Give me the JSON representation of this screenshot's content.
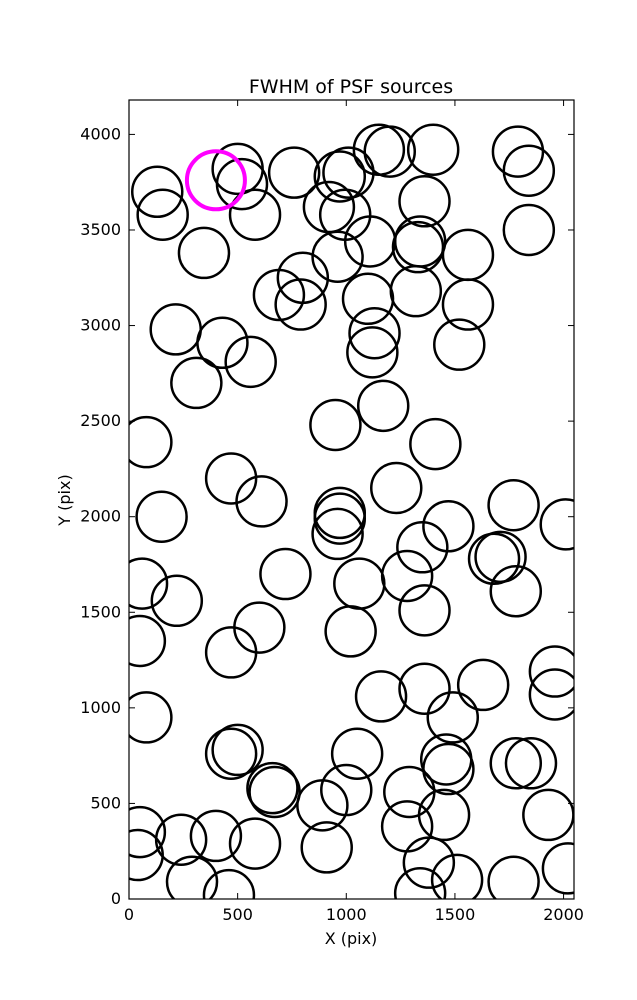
{
  "chart_data": {
    "type": "scatter",
    "title": "FWHM of PSF sources",
    "xlabel": "X (pix)",
    "ylabel": "Y (pix)",
    "xlim": [
      0,
      2048
    ],
    "ylim": [
      0,
      4180
    ],
    "xticks": [
      0,
      500,
      1000,
      1500,
      2000
    ],
    "yticks": [
      0,
      500,
      1000,
      1500,
      2000,
      2500,
      3000,
      3500,
      4000
    ],
    "marker": "open-circle",
    "colors": {
      "sources": "#000000",
      "highlight": "#ff00ff"
    },
    "sources": [
      {
        "x": 130,
        "y": 3700
      },
      {
        "x": 155,
        "y": 3580
      },
      {
        "x": 345,
        "y": 3380
      },
      {
        "x": 500,
        "y": 3820
      },
      {
        "x": 520,
        "y": 3740
      },
      {
        "x": 580,
        "y": 3580
      },
      {
        "x": 760,
        "y": 3800
      },
      {
        "x": 920,
        "y": 3620
      },
      {
        "x": 970,
        "y": 3780
      },
      {
        "x": 1010,
        "y": 3800
      },
      {
        "x": 995,
        "y": 3580
      },
      {
        "x": 1150,
        "y": 3920
      },
      {
        "x": 1200,
        "y": 3910
      },
      {
        "x": 1400,
        "y": 3920
      },
      {
        "x": 1360,
        "y": 3650
      },
      {
        "x": 1790,
        "y": 3910
      },
      {
        "x": 1840,
        "y": 3810
      },
      {
        "x": 1840,
        "y": 3500
      },
      {
        "x": 1110,
        "y": 3440
      },
      {
        "x": 1340,
        "y": 3440
      },
      {
        "x": 1330,
        "y": 3410
      },
      {
        "x": 1560,
        "y": 3370
      },
      {
        "x": 960,
        "y": 3360
      },
      {
        "x": 800,
        "y": 3250
      },
      {
        "x": 690,
        "y": 3160
      },
      {
        "x": 790,
        "y": 3110
      },
      {
        "x": 1100,
        "y": 3140
      },
      {
        "x": 1320,
        "y": 3180
      },
      {
        "x": 1560,
        "y": 3110
      },
      {
        "x": 215,
        "y": 2980
      },
      {
        "x": 430,
        "y": 2910
      },
      {
        "x": 560,
        "y": 2810
      },
      {
        "x": 310,
        "y": 2700
      },
      {
        "x": 1130,
        "y": 2960
      },
      {
        "x": 1120,
        "y": 2860
      },
      {
        "x": 1520,
        "y": 2900
      },
      {
        "x": 950,
        "y": 2480
      },
      {
        "x": 1170,
        "y": 2580
      },
      {
        "x": 80,
        "y": 2390
      },
      {
        "x": 1410,
        "y": 2380
      },
      {
        "x": 470,
        "y": 2200
      },
      {
        "x": 610,
        "y": 2080
      },
      {
        "x": 1230,
        "y": 2150
      },
      {
        "x": 150,
        "y": 2000
      },
      {
        "x": 970,
        "y": 2020
      },
      {
        "x": 970,
        "y": 1990
      },
      {
        "x": 960,
        "y": 1910
      },
      {
        "x": 1470,
        "y": 1950
      },
      {
        "x": 1770,
        "y": 2060
      },
      {
        "x": 2010,
        "y": 1960
      },
      {
        "x": 1350,
        "y": 1840
      },
      {
        "x": 1680,
        "y": 1780
      },
      {
        "x": 1710,
        "y": 1790
      },
      {
        "x": 60,
        "y": 1650
      },
      {
        "x": 220,
        "y": 1560
      },
      {
        "x": 720,
        "y": 1700
      },
      {
        "x": 1060,
        "y": 1650
      },
      {
        "x": 1280,
        "y": 1690
      },
      {
        "x": 1360,
        "y": 1510
      },
      {
        "x": 1780,
        "y": 1610
      },
      {
        "x": 50,
        "y": 1350
      },
      {
        "x": 600,
        "y": 1420
      },
      {
        "x": 470,
        "y": 1290
      },
      {
        "x": 1020,
        "y": 1400
      },
      {
        "x": 80,
        "y": 950
      },
      {
        "x": 1160,
        "y": 1060
      },
      {
        "x": 1360,
        "y": 1100
      },
      {
        "x": 1630,
        "y": 1120
      },
      {
        "x": 1490,
        "y": 950
      },
      {
        "x": 1960,
        "y": 1190
      },
      {
        "x": 1960,
        "y": 1070
      },
      {
        "x": 470,
        "y": 760
      },
      {
        "x": 500,
        "y": 780
      },
      {
        "x": 1050,
        "y": 760
      },
      {
        "x": 1460,
        "y": 730
      },
      {
        "x": 1470,
        "y": 680
      },
      {
        "x": 1780,
        "y": 710
      },
      {
        "x": 1850,
        "y": 710
      },
      {
        "x": 1000,
        "y": 570
      },
      {
        "x": 660,
        "y": 580
      },
      {
        "x": 670,
        "y": 560
      },
      {
        "x": 890,
        "y": 490
      },
      {
        "x": 1290,
        "y": 560
      },
      {
        "x": 1280,
        "y": 380
      },
      {
        "x": 1450,
        "y": 440
      },
      {
        "x": 1930,
        "y": 440
      },
      {
        "x": 50,
        "y": 350
      },
      {
        "x": 240,
        "y": 310
      },
      {
        "x": 400,
        "y": 330
      },
      {
        "x": 580,
        "y": 290
      },
      {
        "x": 910,
        "y": 270
      },
      {
        "x": 40,
        "y": 230
      },
      {
        "x": 290,
        "y": 90
      },
      {
        "x": 460,
        "y": 20
      },
      {
        "x": 1380,
        "y": 190
      },
      {
        "x": 1510,
        "y": 100
      },
      {
        "x": 1340,
        "y": 30
      },
      {
        "x": 1770,
        "y": 90
      },
      {
        "x": 2020,
        "y": 160
      }
    ],
    "highlight": [
      {
        "x": 400,
        "y": 3760
      }
    ]
  }
}
